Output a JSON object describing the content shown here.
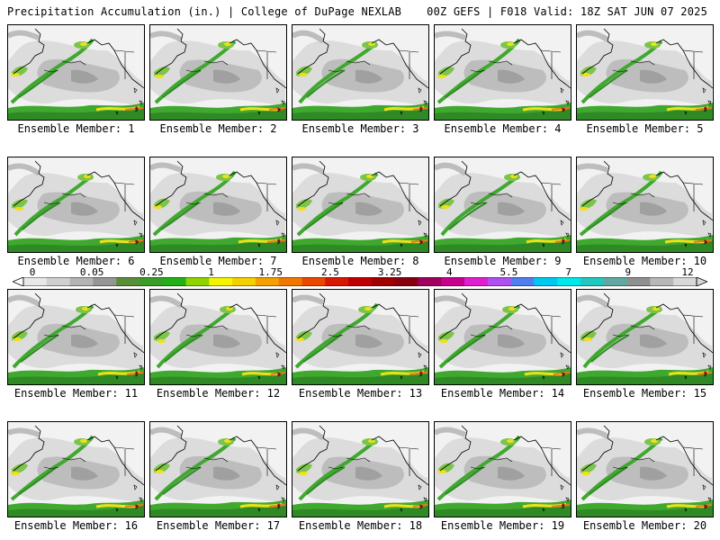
{
  "header": {
    "left_title": "Precipitation Accumulation (in.) | College of DuPage NEXLAB",
    "right_title": "00Z GEFS | F018 Valid: 18Z SAT JUN 07 2025"
  },
  "colorbar": {
    "labels": [
      "0",
      "0.05",
      "0.25",
      "1",
      "1.75",
      "2.5",
      "3.25",
      "4",
      "5.5",
      "7",
      "9",
      "12"
    ],
    "colors": [
      "#e8e8e8",
      "#d0d0d0",
      "#b4b4b4",
      "#969696",
      "#5a8f3a",
      "#3c9c28",
      "#22b014",
      "#8ed400",
      "#f4f400",
      "#f4d000",
      "#f4a000",
      "#f07800",
      "#e84800",
      "#d81800",
      "#c00000",
      "#a00000",
      "#880010",
      "#a00060",
      "#c80090",
      "#e020d0",
      "#b050f0",
      "#5080f0",
      "#00c8f0",
      "#00e8e8",
      "#20c8c0",
      "#60a8a0",
      "#909090",
      "#b8b8b8",
      "#d8d8d8"
    ]
  },
  "colors": {
    "ocean": "#f2f2f2",
    "gray_light": "#dcdcdc",
    "gray_mid": "#bdbdbd",
    "gray_dark": "#a0a0a0",
    "green_dark": "#2f8a25",
    "green": "#3fa82e",
    "green_light": "#7cc44a",
    "yellow": "#f0e018",
    "orange": "#f07820",
    "red": "#d81818"
  },
  "members": [
    {
      "caption": "Ensemble Member: 1"
    },
    {
      "caption": "Ensemble Member: 2"
    },
    {
      "caption": "Ensemble Member: 3"
    },
    {
      "caption": "Ensemble Member: 4"
    },
    {
      "caption": "Ensemble Member: 5"
    },
    {
      "caption": "Ensemble Member: 6"
    },
    {
      "caption": "Ensemble Member: 7"
    },
    {
      "caption": "Ensemble Member: 8"
    },
    {
      "caption": "Ensemble Member: 9"
    },
    {
      "caption": "Ensemble Member: 10"
    },
    {
      "caption": "Ensemble Member: 11"
    },
    {
      "caption": "Ensemble Member: 12"
    },
    {
      "caption": "Ensemble Member: 13"
    },
    {
      "caption": "Ensemble Member: 14"
    },
    {
      "caption": "Ensemble Member: 15"
    },
    {
      "caption": "Ensemble Member: 16"
    },
    {
      "caption": "Ensemble Member: 17"
    },
    {
      "caption": "Ensemble Member: 18"
    },
    {
      "caption": "Ensemble Member: 19"
    },
    {
      "caption": "Ensemble Member: 20"
    }
  ]
}
